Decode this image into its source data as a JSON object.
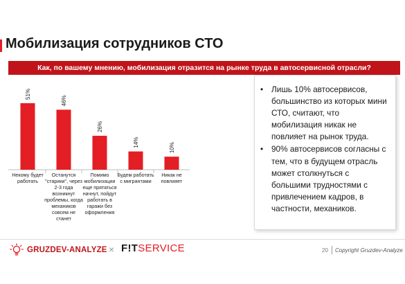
{
  "slide": {
    "title": "Мобилизация сотрудников СТО",
    "question": "Как, по вашему мнению, мобилизация отразится на рынке труда в автосервисной отрасли?"
  },
  "chart_data": {
    "type": "bar",
    "categories": [
      "Некому будет работать",
      "Останутся \"старики\", через 2-3 года возникнут проблемы, когда механиков совсем не станет",
      "Помимо мобилизации еще прятаться начнут, пойдут работать в гаражи без оформления",
      "Будем работать с мигрантами",
      "Никак не повлияет"
    ],
    "values": [
      51,
      46,
      26,
      14,
      10
    ],
    "data_labels": [
      "51%",
      "46%",
      "26%",
      "14%",
      "10%"
    ],
    "value_unit": "%",
    "ylim": [
      0,
      60
    ],
    "grid": false,
    "bar_color": "#e31e24"
  },
  "notes": [
    "Лишь 10% автосервисов, большинство из которых мини СТО, считают, что мобилизация никак не повлияет на рынок труда.",
    "90% автосервисов согласны с тем, что в будущем отрасль может столкнуться с большими трудностями с привлечением кадров, в частности, механиков."
  ],
  "footer": {
    "brand_left": "GRUZDEV-ANALYZE",
    "separator": "×",
    "brand_right_1": "F!T",
    "brand_right_2": "SERVICE",
    "page": "20",
    "copyright": "Copyright Gruzdev-Analyze"
  },
  "colors": {
    "accent": "#e31e24",
    "banner": "#c0141a"
  }
}
